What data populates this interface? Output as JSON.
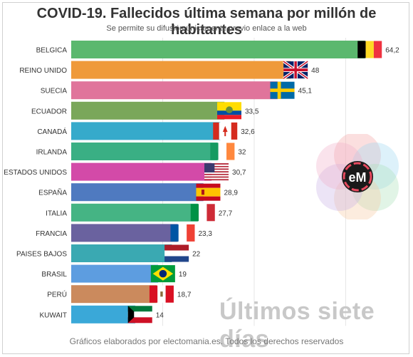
{
  "title": "COVID-19. Fallecidos última semana por millón de habitantes",
  "subtitle": "Se permite su difusión únicamente previo enlace a la web",
  "footer": "Gráficos elaborados por electomania.es. Todos los derechos reservados",
  "watermark": "Últimos siete días",
  "logo_text": "eM",
  "chart_data": {
    "type": "bar",
    "orientation": "horizontal",
    "categories": [
      "BELGICA",
      "REINO UNIDO",
      "SUECIA",
      "ECUADOR",
      "CANADÁ",
      "IRLANDA",
      "ESTADOS UNIDOS",
      "ESPAÑA",
      "ITALIA",
      "FRANCIA",
      "PAISES BAJOS",
      "BRASIL",
      "PERÚ",
      "KUWAIT"
    ],
    "values": [
      64.2,
      48,
      45.1,
      33.5,
      32.6,
      32,
      30.7,
      28.9,
      27.7,
      23.3,
      22,
      19,
      18.7,
      14
    ],
    "value_labels": [
      "64,2",
      "48",
      "45,1",
      "33,5",
      "32,6",
      "32",
      "30,7",
      "28,9",
      "27,7",
      "23,3",
      "22",
      "19",
      "18,7",
      "14"
    ],
    "colors": [
      "#5bb86e",
      "#ef9a3a",
      "#e0749b",
      "#7aa75a",
      "#36aacb",
      "#3aaf84",
      "#d34aa8",
      "#4f7ac0",
      "#45b484",
      "#6a629f",
      "#3aa9b2",
      "#5d9de0",
      "#cb8a5d",
      "#3aa8d8"
    ],
    "flags": [
      "belgium",
      "uk",
      "sweden",
      "ecuador",
      "canada",
      "ireland",
      "usa",
      "spain",
      "italy",
      "france",
      "netherlands",
      "brazil",
      "peru",
      "kuwait"
    ],
    "xlim": [
      0,
      66
    ],
    "grid": true,
    "legend": "none"
  }
}
